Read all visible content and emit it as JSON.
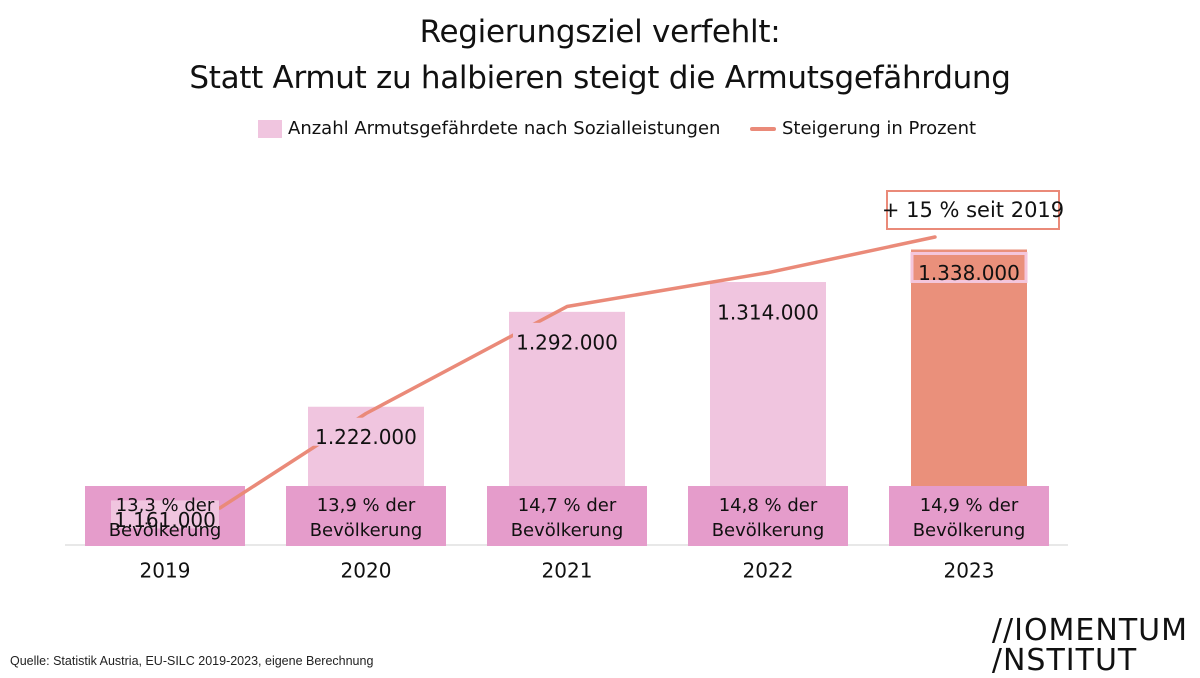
{
  "title_line1": "Regierungsziel verfehlt:",
  "title_line2": "Statt Armut zu halbieren steigt die Armutsgefährdung",
  "legend": {
    "bar_label": "Anzahl Armutsgefährdete nach Sozialleistungen",
    "line_label": "Steigerung in Prozent"
  },
  "annotation": "+ 15 % seit 2019",
  "source": "Quelle: Statistik Austria, EU-SILC 2019-2023, eigene Berechnung",
  "logo": {
    "line1": "//IOMENTUM",
    "line2": "/NSTITUT"
  },
  "colors": {
    "bar": "#f0c5df",
    "bar_highlight": "#ea907b",
    "share_box": "#e59ccb",
    "line": "#ea8a79",
    "axis": "#e0e0e0"
  },
  "chart_data": {
    "type": "bar",
    "categories": [
      "2019",
      "2020",
      "2021",
      "2022",
      "2023"
    ],
    "values": [
      1161000,
      1222000,
      1292000,
      1314000,
      1338000
    ],
    "value_labels": [
      "1.161.000",
      "1.222.000",
      "1.292.000",
      "1.314.000",
      "1.338.000"
    ],
    "share_labels": [
      [
        "13,3 % der",
        "Bevölkerung"
      ],
      [
        "13,9 % der",
        "Bevölkerung"
      ],
      [
        "14,7 % der",
        "Bevölkerung"
      ],
      [
        "14,8 % der",
        "Bevölkerung"
      ],
      [
        "14,9 % der",
        "Bevölkerung"
      ]
    ],
    "highlight_index": 4,
    "line_series": {
      "values": [
        0,
        5.3,
        11.3,
        13.2,
        15.2
      ]
    },
    "ylim": [
      1120000,
      1345000
    ],
    "grid": false
  }
}
